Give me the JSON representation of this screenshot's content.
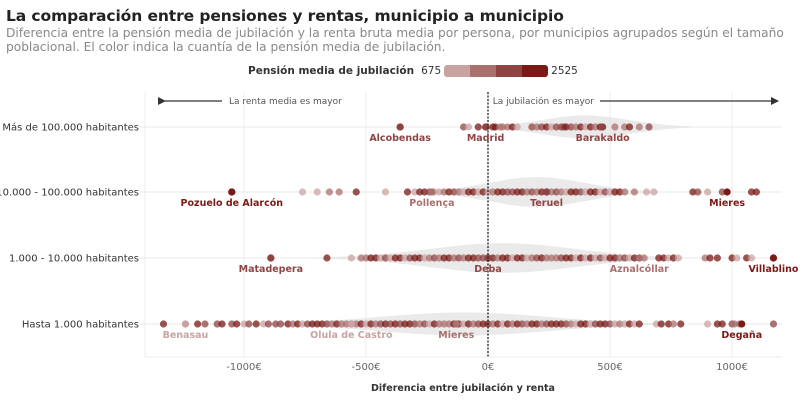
{
  "header": {
    "title": "La comparación entre pensiones y rentas, municipio a municipio",
    "subtitle": "Diferencia entre la pensión media de jubilación y la renta bruta media por persona, por municipios agrupados según el tamaño poblacional. El color indica la cuantía de la pensión media de jubilación."
  },
  "legend": {
    "title": "Pensión media de jubilación",
    "min_label": "675",
    "max_label": "2525",
    "colors": [
      "#c9a3a1",
      "#a9706d",
      "#8f4444",
      "#7a1a16"
    ]
  },
  "chart_data": {
    "type": "scatter",
    "subtype": "beeswarm-strip with violin background",
    "title": "La comparación entre pensiones y rentas, municipio a municipio",
    "xlabel": "Diferencia entre jubilación y renta",
    "ylabel": "",
    "xlim": [
      -1330,
      1200
    ],
    "x_ticks": [
      -1000,
      -500,
      0,
      500,
      1000
    ],
    "x_tick_labels": [
      "-1000€",
      "-500€",
      "0€",
      "500€",
      "1000€"
    ],
    "reference_line": 0,
    "grid": true,
    "annotations": {
      "left": "La renta media es mayor",
      "right": "La jubilación es mayor"
    },
    "color_scale": {
      "min": 675,
      "max": 2525
    },
    "categories": [
      "Más de 100.000 habitantes",
      "10.000 - 100.000 habitantes",
      "1.000 - 10.000 habitantes",
      "Hasta 1.000 habitantes"
    ],
    "series": [
      {
        "name": "Más de 100.000 habitantes",
        "points": [
          -360,
          -100,
          -80,
          -40,
          -5,
          20,
          30,
          50,
          60,
          80,
          100,
          120,
          180,
          200,
          220,
          240,
          260,
          280,
          300,
          310,
          320,
          340,
          360,
          380,
          400,
          420,
          440,
          460,
          520,
          560,
          580,
          620,
          660
        ],
        "labeled": [
          {
            "name": "Alcobendas",
            "x": -360,
            "color": "#8f4444"
          },
          {
            "name": "Madrid",
            "x": -10,
            "color": "#8f4444"
          },
          {
            "name": "Barakaldo",
            "x": 470,
            "color": "#8f4444"
          }
        ],
        "violin": {
          "center": 400,
          "spread": 180,
          "height": 0.35
        }
      },
      {
        "name": "10.000 - 100.000 habitantes",
        "points": [
          -1050,
          -760,
          -700,
          -650,
          -610,
          -540,
          -420,
          -330,
          -300,
          -280,
          -260,
          -240,
          -220,
          -200,
          -180,
          -160,
          -140,
          -120,
          -100,
          -80,
          -60,
          -40,
          -20,
          0,
          20,
          40,
          60,
          80,
          100,
          120,
          140,
          160,
          180,
          200,
          220,
          240,
          260,
          280,
          300,
          320,
          340,
          360,
          380,
          400,
          420,
          440,
          460,
          480,
          500,
          520,
          540,
          560,
          600,
          650,
          680,
          840,
          860,
          900,
          960,
          1080,
          1100
        ],
        "labeled": [
          {
            "name": "Pozuelo de Alarcón",
            "x": -1050,
            "color": "#7a1a16"
          },
          {
            "name": "Pollença",
            "x": -230,
            "color": "#a9706d"
          },
          {
            "name": "Teruel",
            "x": 240,
            "color": "#8f4444"
          },
          {
            "name": "Mieres",
            "x": 980,
            "color": "#7a1a16"
          }
        ],
        "violin": {
          "center": 200,
          "spread": 200,
          "height": 0.45
        }
      },
      {
        "name": "1.000 - 10.000 habitantes",
        "points": [
          -890,
          -660,
          -560,
          -520,
          -500,
          -480,
          -460,
          -440,
          -420,
          -400,
          -380,
          -360,
          -340,
          -320,
          -300,
          -280,
          -260,
          -240,
          -220,
          -200,
          -180,
          -160,
          -140,
          -120,
          -100,
          -80,
          -60,
          -40,
          -20,
          0,
          20,
          40,
          60,
          80,
          100,
          120,
          140,
          160,
          180,
          200,
          220,
          240,
          260,
          280,
          300,
          320,
          340,
          360,
          380,
          400,
          420,
          440,
          460,
          480,
          500,
          520,
          540,
          560,
          580,
          600,
          620,
          640,
          700,
          720,
          740,
          760,
          780,
          890,
          910,
          940,
          1000,
          1020,
          1060,
          1080,
          1170
        ],
        "labeled": [
          {
            "name": "Matadepera",
            "x": -890,
            "color": "#8f4444"
          },
          {
            "name": "Deba",
            "x": 0,
            "color": "#8f4444"
          },
          {
            "name": "Aznalcóllar",
            "x": 620,
            "color": "#a9706d"
          },
          {
            "name": "Villablino",
            "x": 1170,
            "color": "#7a1a16"
          }
        ],
        "violin": {
          "center": 60,
          "spread": 300,
          "height": 0.45
        }
      },
      {
        "name": "Hasta 1.000 habitantes",
        "points": [
          -1330,
          -1240,
          -1190,
          -1160,
          -1110,
          -1090,
          -1050,
          -1030,
          -1000,
          -980,
          -950,
          -920,
          -900,
          -870,
          -850,
          -820,
          -800,
          -780,
          -760,
          -740,
          -720,
          -700,
          -680,
          -660,
          -640,
          -620,
          -600,
          -580,
          -560,
          -540,
          -520,
          -500,
          -480,
          -460,
          -440,
          -420,
          -400,
          -380,
          -360,
          -340,
          -320,
          -300,
          -280,
          -260,
          -240,
          -220,
          -200,
          -180,
          -160,
          -140,
          -120,
          -100,
          -80,
          -60,
          -40,
          -20,
          0,
          20,
          40,
          60,
          80,
          100,
          120,
          140,
          160,
          180,
          200,
          220,
          240,
          260,
          280,
          300,
          320,
          340,
          360,
          380,
          400,
          420,
          440,
          460,
          480,
          500,
          520,
          540,
          560,
          580,
          600,
          620,
          690,
          710,
          740,
          760,
          790,
          900,
          940,
          960,
          1000,
          1010,
          1030,
          1170
        ],
        "labeled": [
          {
            "name": "Benasau",
            "x": -1240,
            "color": "#c9a3a1"
          },
          {
            "name": "Olula de Castro",
            "x": -560,
            "color": "#c9a3a1"
          },
          {
            "name": "Mieres",
            "x": -130,
            "color": "#a9706d"
          },
          {
            "name": "Degaña",
            "x": 1040,
            "color": "#7a1a16"
          }
        ],
        "violin": {
          "center": -100,
          "spread": 350,
          "height": 0.35
        }
      }
    ]
  }
}
